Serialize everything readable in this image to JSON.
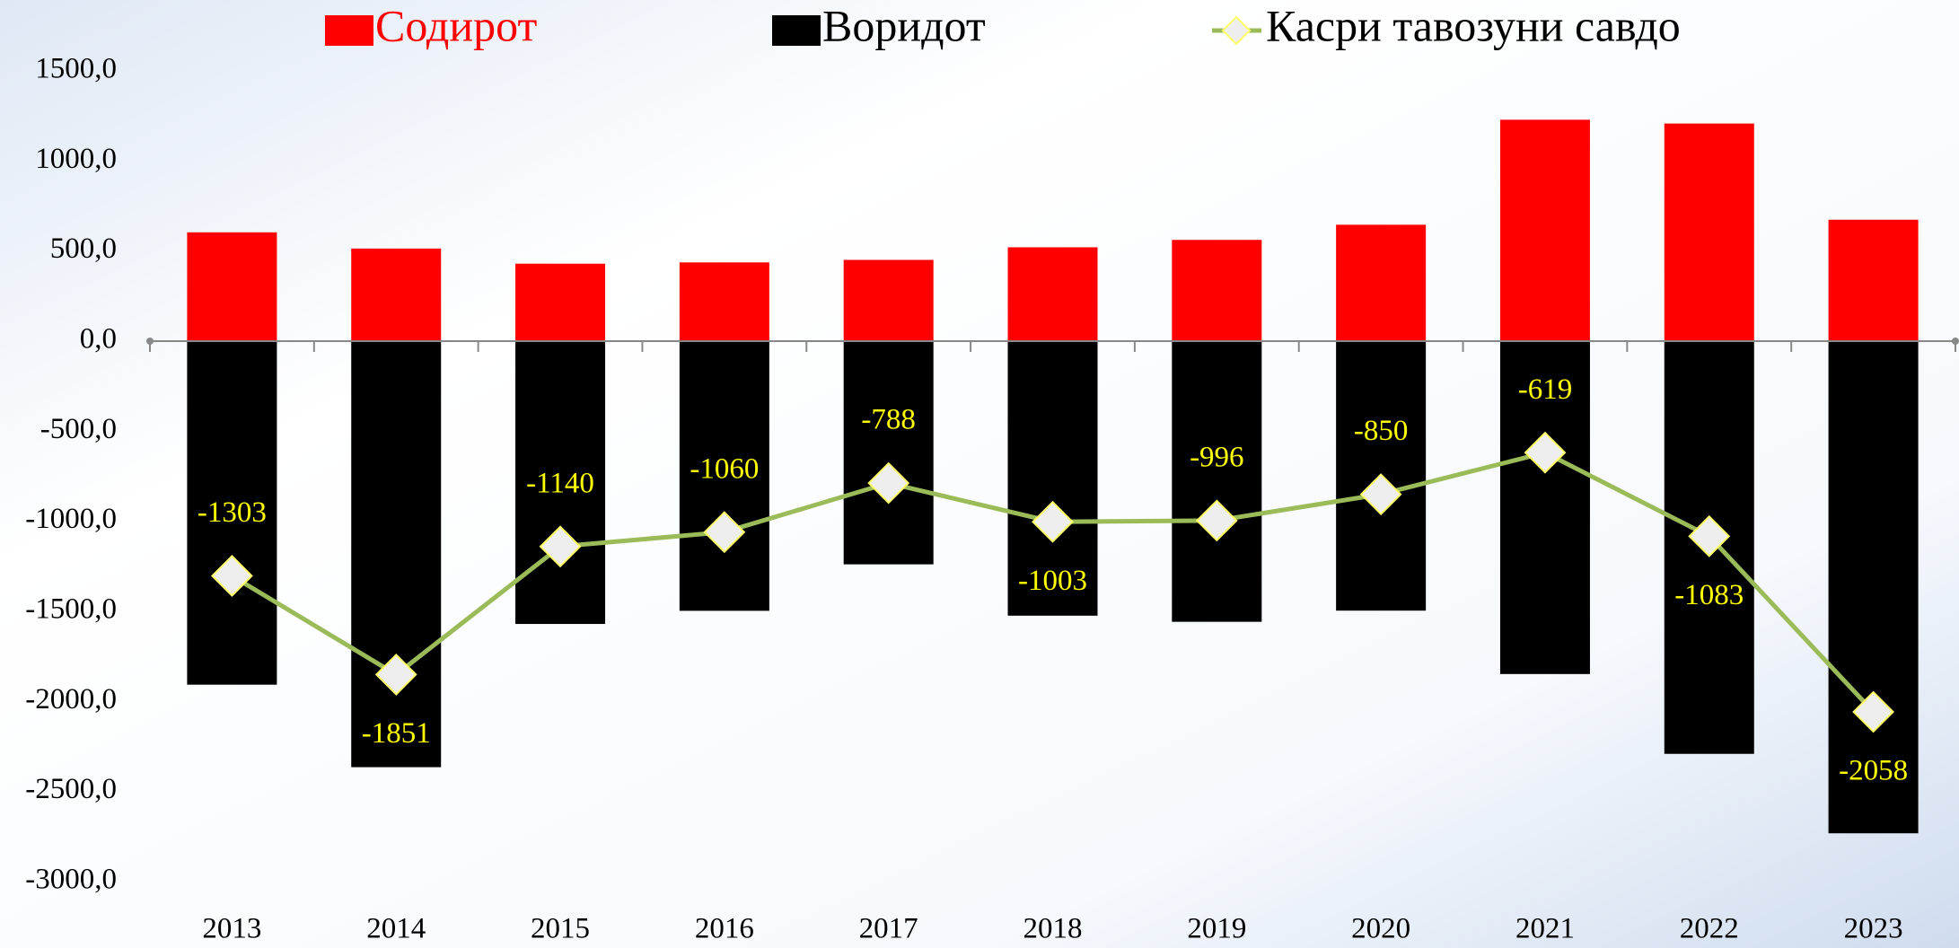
{
  "chart_data": {
    "type": "bar",
    "categories": [
      "2013",
      "2014",
      "2015",
      "2016",
      "2017",
      "2018",
      "2019",
      "2020",
      "2021",
      "2022",
      "2023"
    ],
    "series": [
      {
        "name": "Содирот",
        "color": "#ff0000",
        "values": [
          604,
          514,
          430,
          437,
          451,
          521,
          562,
          646,
          1229,
          1208,
          674
        ]
      },
      {
        "name": "Воридот",
        "color": "#000000",
        "values": [
          -1907,
          -2365,
          -1570,
          -1497,
          -1239,
          -1524,
          -1558,
          -1496,
          -1848,
          -2291,
          -2732
        ]
      },
      {
        "name": "Касри тавозуни савдо",
        "type": "line",
        "color": "#9bbb59",
        "marker_color": "#eeeeee",
        "values": [
          -1303,
          -1851,
          -1140,
          -1060,
          -788,
          -1003,
          -996,
          -850,
          -619,
          -1083,
          -2058
        ]
      }
    ],
    "ylim": [
      -3000,
      1500
    ],
    "yticks": [
      {
        "value": -3000,
        "label": "-3000,0"
      },
      {
        "value": -2500,
        "label": "-2500,0"
      },
      {
        "value": -2000,
        "label": "-2000,0"
      },
      {
        "value": -1500,
        "label": "-1500,0"
      },
      {
        "value": -1000,
        "label": "-1000,0"
      },
      {
        "value": -500,
        "label": "-500,0"
      },
      {
        "value": 0,
        "label": "0,0"
      },
      {
        "value": 500,
        "label": "500,0"
      },
      {
        "value": 1000,
        "label": "1000,0"
      },
      {
        "value": 1500,
        "label": "1500,0"
      }
    ],
    "legend": "top",
    "grid": false
  }
}
